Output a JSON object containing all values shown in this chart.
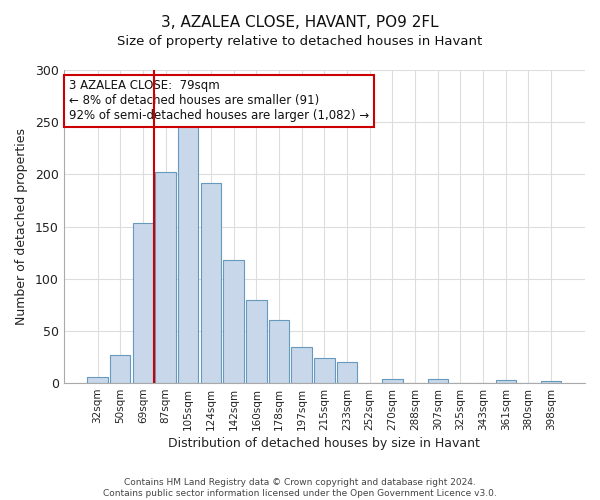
{
  "title": "3, AZALEA CLOSE, HAVANT, PO9 2FL",
  "subtitle": "Size of property relative to detached houses in Havant",
  "xlabel": "Distribution of detached houses by size in Havant",
  "ylabel": "Number of detached properties",
  "bar_labels": [
    "32sqm",
    "50sqm",
    "69sqm",
    "87sqm",
    "105sqm",
    "124sqm",
    "142sqm",
    "160sqm",
    "178sqm",
    "197sqm",
    "215sqm",
    "233sqm",
    "252sqm",
    "270sqm",
    "288sqm",
    "307sqm",
    "325sqm",
    "343sqm",
    "361sqm",
    "380sqm",
    "398sqm"
  ],
  "bar_values": [
    6,
    27,
    153,
    202,
    250,
    192,
    118,
    80,
    60,
    35,
    24,
    20,
    0,
    4,
    0,
    4,
    0,
    0,
    3,
    0,
    2
  ],
  "bar_color": "#c8d8ea",
  "bar_edge_color": "#6699bb",
  "vline_color": "#cc0000",
  "ylim": [
    0,
    300
  ],
  "yticks": [
    0,
    50,
    100,
    150,
    200,
    250,
    300
  ],
  "annotation_line1": "3 AZALEA CLOSE:  79sqm",
  "annotation_line2": "← 8% of detached houses are smaller (91)",
  "annotation_line3": "92% of semi-detached houses are larger (1,082) →",
  "annotation_box_color": "#ffffff",
  "annotation_box_edge": "#cc0000",
  "footer1": "Contains HM Land Registry data © Crown copyright and database right 2024.",
  "footer2": "Contains public sector information licensed under the Open Government Licence v3.0.",
  "background_color": "#ffffff",
  "grid_color": "#dddddd",
  "vline_x_index": 2.5
}
